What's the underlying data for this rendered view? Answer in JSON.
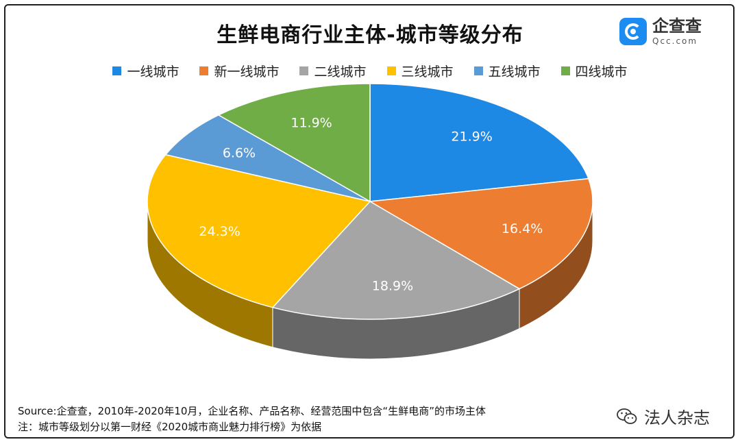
{
  "title": "生鲜电商行业主体-城市等级分布",
  "brand": {
    "cn": "企查查",
    "en": "Qcc.com"
  },
  "chart_data": {
    "type": "pie",
    "title": "生鲜电商行业主体-城市等级分布",
    "legend_position": "top",
    "slices": [
      {
        "label": "一线城市",
        "value": 21.9,
        "display": "21.9%",
        "color": "#1e88e5"
      },
      {
        "label": "新一线城市",
        "value": 16.4,
        "display": "16.4%",
        "color": "#ed7d31"
      },
      {
        "label": "二线城市",
        "value": 18.9,
        "display": "18.9%",
        "color": "#a5a5a5"
      },
      {
        "label": "三线城市",
        "value": 24.3,
        "display": "24.3%",
        "color": "#ffc000"
      },
      {
        "label": "五线城市",
        "value": 6.6,
        "display": "6.6%",
        "color": "#5b9bd5"
      },
      {
        "label": "四线城市",
        "value": 11.9,
        "display": "11.9%",
        "color": "#70ad47"
      }
    ]
  },
  "legend": [
    {
      "label": "一线城市",
      "color": "#1e88e5"
    },
    {
      "label": "新一线城市",
      "color": "#ed7d31"
    },
    {
      "label": "二线城市",
      "color": "#a5a5a5"
    },
    {
      "label": "三线城市",
      "color": "#ffc000"
    },
    {
      "label": "五线城市",
      "color": "#5b9bd5"
    },
    {
      "label": "四线城市",
      "color": "#70ad47"
    }
  ],
  "footer": {
    "source": "Source:企查查，2010年-2020年10月，企业名称、产品名称、经营范围中包含“生鲜电商”的市场主体",
    "note": "注：城市等级划分以第一财经《2020城市商业魅力排行榜》为依据"
  },
  "wechat": {
    "name": "法人杂志",
    "icon": "wechat-icon"
  }
}
